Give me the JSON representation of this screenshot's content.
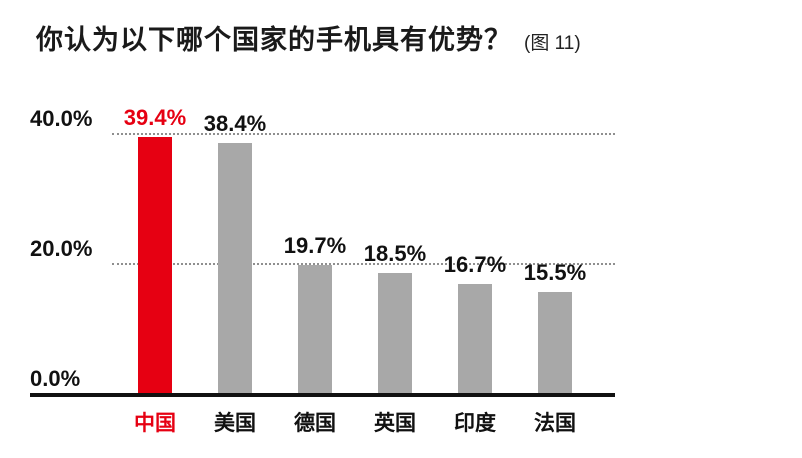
{
  "header": {
    "title": "你认为以下哪个国家的手机具有优势？",
    "figure_note": "(图 11)"
  },
  "colors": {
    "accent_red": "#e60012",
    "bar_gray": "#a8a8a8",
    "axis_black": "#111111",
    "grid_gray": "#8f8f8f"
  },
  "chart_data": {
    "type": "bar",
    "title": "你认为以下哪个国家的手机具有优势？",
    "figure_note": "(图 11)",
    "categories": [
      "中国",
      "美国",
      "德国",
      "英国",
      "印度",
      "法国"
    ],
    "values": [
      39.4,
      38.4,
      19.7,
      18.5,
      16.7,
      15.5
    ],
    "value_labels": [
      "39.4%",
      "38.4%",
      "19.7%",
      "18.5%",
      "16.7%",
      "15.5%"
    ],
    "highlight_index": 0,
    "y_ticks": [
      {
        "label": "40.0%",
        "value": 40
      },
      {
        "label": "20.0%",
        "value": 20
      },
      {
        "label": "0.0%",
        "value": 0
      }
    ],
    "gridline_values": [
      40,
      20
    ],
    "ylim": [
      0,
      40
    ],
    "xlabel": "",
    "ylabel": "",
    "grid": "horizontal dotted lines at 20% and 40%",
    "legend": "none"
  }
}
